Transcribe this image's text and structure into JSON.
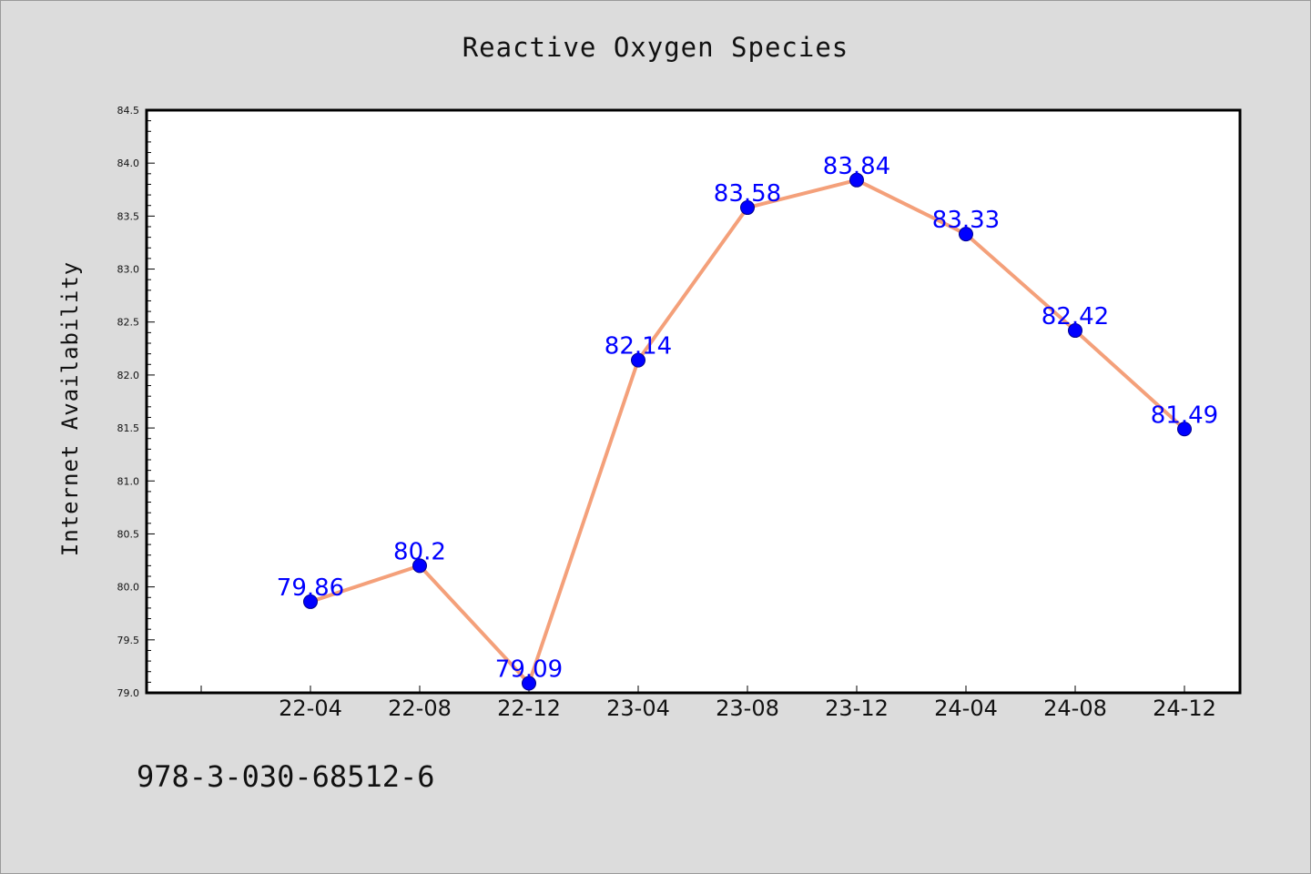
{
  "chart_data": {
    "type": "line",
    "title": "Reactive Oxygen Species",
    "xlabel": "",
    "ylabel": "Internet Availability",
    "categories": [
      "22-04",
      "22-08",
      "22-12",
      "23-04",
      "23-08",
      "23-12",
      "24-04",
      "24-08",
      "24-12"
    ],
    "values": [
      79.86,
      80.2,
      79.09,
      82.14,
      83.58,
      83.84,
      83.33,
      82.42,
      81.49
    ],
    "data_labels": [
      "79.86",
      "80.2",
      "79.09",
      "82.14",
      "83.58",
      "83.84",
      "83.33",
      "82.42",
      "81.49"
    ],
    "ylim": [
      79.0,
      84.5
    ],
    "yticks": [
      "79.0",
      "79.5",
      "80.0",
      "80.5",
      "81.0",
      "81.5",
      "82.0",
      "82.5",
      "83.0",
      "83.5",
      "84.0",
      "84.5"
    ],
    "grid": false,
    "line_color": "#f4a07a",
    "marker_color": "#0000ff",
    "label_color": "#0000ff"
  },
  "footer_note": "978-3-030-68512-6"
}
